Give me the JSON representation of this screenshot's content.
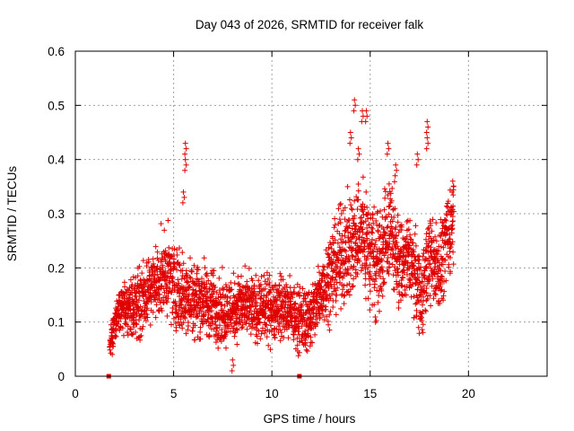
{
  "chart_data": {
    "type": "scatter",
    "title": "Day 043 of 2026, SRMTID for receiver falk",
    "xlabel": "GPS time / hours",
    "ylabel": "SRMTID / TECUs",
    "xlim": [
      0,
      24
    ],
    "ylim": [
      0,
      0.6
    ],
    "xticks": [
      "0",
      "5",
      "10",
      "15",
      "20"
    ],
    "yticks": [
      "0",
      "0.1",
      "0.2",
      "0.3",
      "0.4",
      "0.5",
      "0.6"
    ],
    "xtick_values": [
      0,
      5,
      10,
      15,
      20
    ],
    "ytick_values": [
      0,
      0.1,
      0.2,
      0.3,
      0.4,
      0.5,
      0.6
    ],
    "grid": true,
    "marker": "plus",
    "color": "#e00000",
    "series": [
      {
        "name": "SRMTID",
        "x_start": 1.75,
        "x_end": 19.25,
        "step_hours": 0.05,
        "baseline_profile": [
          [
            1.75,
            0.06
          ],
          [
            2.2,
            0.12
          ],
          [
            3.0,
            0.13
          ],
          [
            4.0,
            0.17
          ],
          [
            4.6,
            0.19
          ],
          [
            5.2,
            0.16
          ],
          [
            5.6,
            0.15
          ],
          [
            6.5,
            0.14
          ],
          [
            7.5,
            0.12
          ],
          [
            8.5,
            0.13
          ],
          [
            9.5,
            0.12
          ],
          [
            10.5,
            0.13
          ],
          [
            11.5,
            0.1
          ],
          [
            12.0,
            0.11
          ],
          [
            12.8,
            0.18
          ],
          [
            13.5,
            0.22
          ],
          [
            14.0,
            0.24
          ],
          [
            14.5,
            0.27
          ],
          [
            15.0,
            0.23
          ],
          [
            15.5,
            0.21
          ],
          [
            16.0,
            0.28
          ],
          [
            16.5,
            0.2
          ],
          [
            17.0,
            0.22
          ],
          [
            17.6,
            0.15
          ],
          [
            18.0,
            0.22
          ],
          [
            18.5,
            0.2
          ],
          [
            19.0,
            0.26
          ],
          [
            19.25,
            0.3
          ]
        ],
        "spread_profile": [
          [
            1.75,
            0.03
          ],
          [
            3.0,
            0.06
          ],
          [
            5.0,
            0.08
          ],
          [
            8.0,
            0.06
          ],
          [
            12.0,
            0.06
          ],
          [
            13.5,
            0.09
          ],
          [
            15.0,
            0.11
          ],
          [
            17.0,
            0.08
          ],
          [
            19.25,
            0.08
          ]
        ],
        "peaks": [
          {
            "x": 5.6,
            "y": 0.43
          },
          {
            "x": 5.6,
            "y": 0.4
          },
          {
            "x": 5.5,
            "y": 0.34
          },
          {
            "x": 8.0,
            "y": 0.03
          },
          {
            "x": 14.2,
            "y": 0.51
          },
          {
            "x": 14.6,
            "y": 0.49
          },
          {
            "x": 14.8,
            "y": 0.49
          },
          {
            "x": 14.0,
            "y": 0.45
          },
          {
            "x": 14.4,
            "y": 0.42
          },
          {
            "x": 15.9,
            "y": 0.43
          },
          {
            "x": 17.9,
            "y": 0.47
          },
          {
            "x": 17.9,
            "y": 0.44
          },
          {
            "x": 17.4,
            "y": 0.41
          },
          {
            "x": 16.3,
            "y": 0.39
          },
          {
            "x": 19.2,
            "y": 0.36
          }
        ],
        "zero_markers_x": [
          1.7,
          11.4
        ]
      }
    ]
  }
}
